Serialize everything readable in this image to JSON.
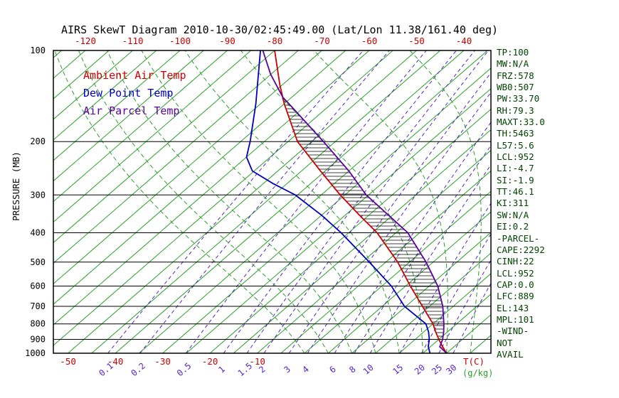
{
  "title": "AIRS SkewT Diagram 2010-10-30/02:45:49.00 (Lat/Lon 11.38/161.40 deg)",
  "colors": {
    "temp": "#cc0000",
    "dew": "#0000bb",
    "parcel": "#5a00a0",
    "isotherm": "#2aa02a",
    "mixing": "#5522cc",
    "axis": "#000000",
    "stats": "#004400"
  },
  "legend": {
    "items": [
      {
        "key": "temp",
        "label": "Ambient Air Temp"
      },
      {
        "key": "dew",
        "label": "Dew Point Temp"
      },
      {
        "key": "parcel",
        "label": "Air Parcel Temp"
      }
    ]
  },
  "axes": {
    "pressure": {
      "label": "PRESSURE (MB)",
      "ticks": [
        100,
        200,
        300,
        400,
        500,
        600,
        700,
        800,
        900,
        1000
      ]
    },
    "top_temp": {
      "ticks": [
        -120,
        -110,
        -100,
        -90,
        -80,
        -70,
        -60,
        -50,
        -40
      ]
    },
    "bottom_temp": {
      "ticks": [
        -50,
        -40,
        -30,
        -20,
        -10
      ],
      "unit": "T(C)"
    },
    "mixing": {
      "unit": "(g/kg)"
    }
  },
  "stats": {
    "lines": [
      "TP:100",
      "MW:N/A",
      "FRZ:578",
      "WB0:507",
      "PW:33.70",
      "RH:79.3",
      "MAXT:33.0",
      "TH:5463",
      "L57:5.6",
      "LCL:952",
      "LI:-4.7",
      "SI:-1.9",
      "TT:46.1",
      "KI:311",
      "SW:N/A",
      "EI:0.2",
      "-PARCEL-",
      "CAPE:2292",
      "CINH:22",
      "LCL:952",
      "CAP:0.0",
      "LFC:889",
      "EL:143",
      "MPL:101",
      "-WIND-",
      "NOT",
      "AVAIL"
    ]
  },
  "chart_data": {
    "type": "line",
    "subtype": "skewt-log-p",
    "title": "AIRS SkewT Diagram 2010-10-30/02:45:49.00 (Lat/Lon 11.38/161.40 deg)",
    "xlabel": "T(C)",
    "ylabel": "PRESSURE (MB)",
    "pressure_range_mb": [
      100,
      1000
    ],
    "isotherms": {
      "min": -125,
      "max": 40,
      "step": 5
    },
    "mixing_ratio_lines": [
      0.1,
      0.2,
      0.5,
      1,
      1.5,
      2,
      3,
      4,
      6,
      8,
      10,
      15,
      20,
      25,
      30
    ],
    "moist_adiabats_start_c": [
      0,
      5,
      10,
      15,
      20,
      25,
      30,
      35,
      40,
      45
    ],
    "parcel_region": {
      "lfc_mb": 889,
      "el_mb": 143
    },
    "series": [
      {
        "key": "temp",
        "name": "Ambient Air Temp",
        "pressure_mb": [
          1000,
          950,
          900,
          850,
          800,
          700,
          600,
          500,
          400,
          350,
          300,
          250,
          200,
          150,
          130,
          100
        ],
        "values_c": [
          30,
          27.5,
          25,
          22.5,
          20,
          13.5,
          6,
          -2.5,
          -14,
          -22,
          -31,
          -41,
          -53,
          -65,
          -70.5,
          -80
        ]
      },
      {
        "key": "dew",
        "name": "Dew Point Temp",
        "pressure_mb": [
          1000,
          950,
          900,
          850,
          800,
          700,
          600,
          500,
          400,
          350,
          300,
          275,
          250,
          225,
          200,
          150,
          100
        ],
        "values_c": [
          26.5,
          24.5,
          23,
          21,
          18.5,
          9.7,
          2,
          -8.5,
          -21.6,
          -30,
          -40.5,
          -48,
          -55.4,
          -60,
          -63,
          -71,
          -83
        ]
      },
      {
        "key": "parcel",
        "name": "Air Parcel Temp",
        "pressure_mb": [
          1000,
          952,
          900,
          850,
          800,
          700,
          600,
          500,
          400,
          300,
          250,
          200,
          150,
          143,
          120,
          100
        ],
        "values_c": [
          30,
          27,
          25.8,
          24.2,
          22.3,
          17.8,
          11.8,
          3.5,
          -7.5,
          -25.5,
          -35,
          -47.5,
          -64,
          -66.8,
          -75,
          -82.5
        ]
      }
    ]
  }
}
